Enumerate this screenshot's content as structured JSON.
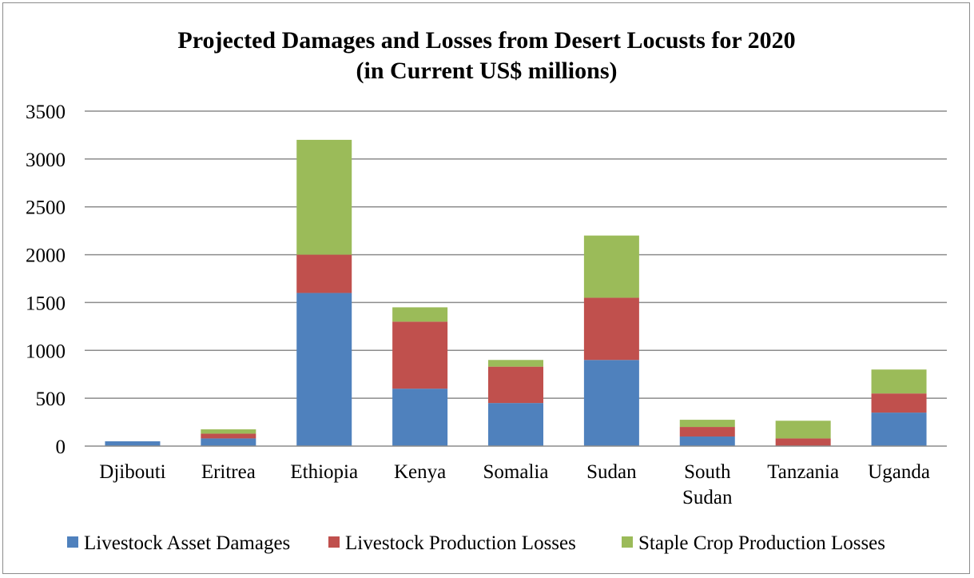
{
  "chart_data": {
    "type": "bar",
    "stacked": true,
    "title": "Projected Damages and Losses from Desert Locusts for 2020",
    "subtitle": "(in Current US$ millions)",
    "categories": [
      [
        "Djibouti"
      ],
      [
        "Eritrea"
      ],
      [
        "Ethiopia"
      ],
      [
        "Kenya"
      ],
      [
        "Somalia"
      ],
      [
        "Sudan"
      ],
      [
        "South",
        "Sudan"
      ],
      [
        "Tanzania"
      ],
      [
        "Uganda"
      ]
    ],
    "series": [
      {
        "name": "Livestock Asset Damages",
        "color": "#4f81bd",
        "values": [
          50,
          80,
          1600,
          600,
          450,
          900,
          100,
          0,
          350
        ]
      },
      {
        "name": "Livestock Production Losses",
        "color": "#c0504d",
        "values": [
          0,
          50,
          400,
          700,
          380,
          650,
          100,
          80,
          200
        ]
      },
      {
        "name": "Staple Crop Production Losses",
        "color": "#9bbb59",
        "values": [
          0,
          45,
          1200,
          150,
          70,
          650,
          75,
          185,
          250
        ]
      }
    ],
    "ylim": [
      0,
      3500
    ],
    "yticks": [
      0,
      500,
      1000,
      1500,
      2000,
      2500,
      3000,
      3500
    ],
    "grid": true,
    "legend_position": "bottom",
    "gridline_color": "#8c8c8c",
    "axis_color": "#8c8c8c"
  }
}
